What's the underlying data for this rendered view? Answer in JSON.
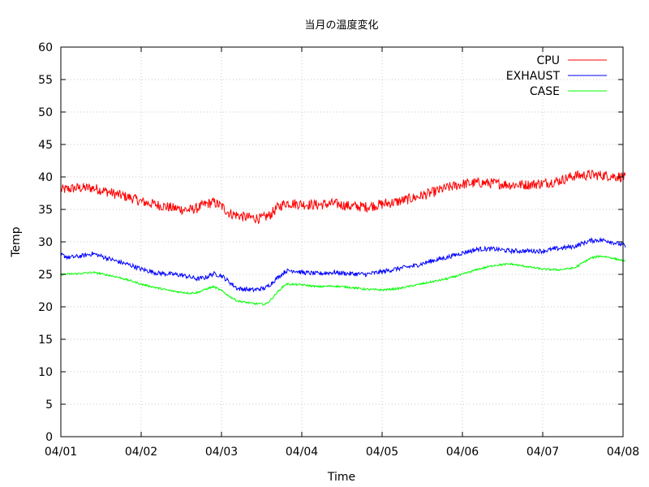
{
  "chart_data": {
    "type": "line",
    "title": "当月の温度変化",
    "xlabel": "Time",
    "ylabel": "Temp",
    "ylim": [
      0,
      60
    ],
    "yticks": [
      "0",
      "5",
      "10",
      "15",
      "20",
      "25",
      "30",
      "35",
      "40",
      "45",
      "50",
      "55",
      "60"
    ],
    "xlim": [
      "04/01",
      "04/08"
    ],
    "xticks": [
      "04/01",
      "04/02",
      "04/03",
      "04/04",
      "04/05",
      "04/06",
      "04/07",
      "04/08"
    ],
    "grid": true,
    "legend_position": "top-right",
    "series": [
      {
        "name": "CPU",
        "color": "#ff0000",
        "noise": 0.8,
        "x": [
          0.0,
          0.2,
          0.4,
          0.5,
          0.7,
          0.9,
          1.0,
          1.2,
          1.4,
          1.6,
          1.7,
          1.8,
          1.9,
          2.0,
          2.1,
          2.3,
          2.5,
          2.6,
          2.7,
          2.8,
          3.0,
          3.2,
          3.4,
          3.6,
          3.8,
          4.0,
          4.2,
          4.4,
          4.6,
          4.8,
          5.0,
          5.2,
          5.4,
          5.6,
          5.8,
          6.0,
          6.2,
          6.4,
          6.6,
          6.8,
          7.0,
          7.03
        ],
        "y": [
          38.0,
          38.3,
          38.3,
          38.0,
          37.3,
          36.7,
          36.2,
          35.7,
          35.2,
          34.9,
          35.2,
          35.8,
          36.1,
          35.5,
          34.4,
          33.8,
          33.6,
          34.1,
          35.3,
          36.0,
          35.8,
          35.7,
          35.9,
          35.5,
          35.4,
          35.8,
          36.2,
          36.8,
          37.5,
          38.3,
          38.9,
          39.1,
          39.0,
          38.8,
          38.8,
          39.0,
          39.4,
          40.2,
          40.3,
          40.2,
          40.0,
          39.8
        ]
      },
      {
        "name": "EXHAUST",
        "color": "#0000ff",
        "noise": 0.35,
        "x": [
          0.0,
          0.1,
          0.25,
          0.4,
          0.5,
          0.7,
          0.9,
          1.0,
          1.2,
          1.4,
          1.5,
          1.6,
          1.7,
          1.8,
          1.9,
          2.0,
          2.1,
          2.2,
          2.4,
          2.55,
          2.6,
          2.7,
          2.8,
          2.9,
          3.0,
          3.2,
          3.4,
          3.6,
          3.8,
          4.0,
          4.2,
          4.4,
          4.6,
          4.8,
          5.0,
          5.2,
          5.4,
          5.6,
          5.8,
          6.0,
          6.2,
          6.4,
          6.5,
          6.6,
          6.7,
          6.8,
          7.0,
          7.03
        ],
        "y": [
          28.0,
          27.6,
          27.8,
          28.2,
          27.8,
          27.0,
          26.3,
          25.8,
          25.2,
          25.0,
          24.9,
          24.6,
          24.3,
          24.5,
          25.1,
          24.8,
          23.8,
          22.8,
          22.6,
          22.9,
          23.4,
          24.5,
          25.5,
          25.6,
          25.3,
          25.1,
          25.3,
          25.1,
          25.0,
          25.4,
          25.9,
          26.3,
          27.0,
          27.6,
          28.3,
          28.9,
          28.9,
          28.6,
          28.6,
          28.6,
          29.0,
          29.3,
          29.8,
          30.2,
          30.3,
          30.2,
          29.5,
          29.3
        ]
      },
      {
        "name": "CASE",
        "color": "#00ff00",
        "noise": 0.15,
        "x": [
          0.0,
          0.2,
          0.4,
          0.5,
          0.7,
          0.9,
          1.0,
          1.2,
          1.4,
          1.6,
          1.7,
          1.8,
          1.9,
          2.0,
          2.1,
          2.2,
          2.4,
          2.55,
          2.6,
          2.7,
          2.8,
          3.0,
          3.2,
          3.4,
          3.6,
          3.8,
          4.0,
          4.2,
          4.4,
          4.6,
          4.8,
          5.0,
          5.2,
          5.4,
          5.6,
          5.8,
          6.0,
          6.2,
          6.4,
          6.5,
          6.6,
          6.7,
          6.8,
          7.0,
          7.03
        ],
        "y": [
          25.0,
          25.1,
          25.3,
          25.1,
          24.6,
          23.9,
          23.5,
          22.9,
          22.4,
          22.1,
          22.2,
          22.7,
          23.1,
          22.5,
          21.6,
          20.9,
          20.5,
          20.4,
          20.9,
          22.3,
          23.5,
          23.4,
          23.1,
          23.2,
          23.0,
          22.7,
          22.6,
          22.8,
          23.3,
          23.8,
          24.3,
          25.0,
          25.8,
          26.4,
          26.6,
          26.2,
          25.8,
          25.7,
          26.0,
          26.8,
          27.5,
          27.8,
          27.7,
          27.1,
          26.9
        ]
      }
    ]
  }
}
